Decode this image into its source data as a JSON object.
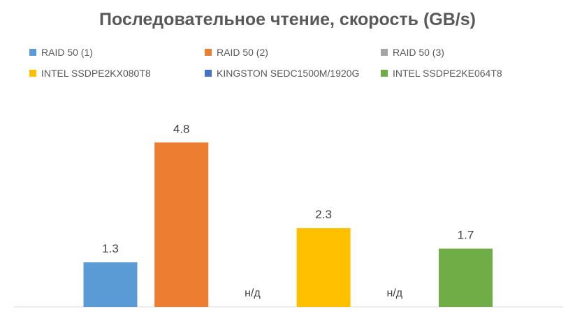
{
  "chart_data": {
    "type": "bar",
    "title": "Последовательное чтение, скорость (GB/s)",
    "xlabel": "",
    "ylabel": "",
    "ylim": [
      0,
      5.5
    ],
    "grid": false,
    "legend_position": "top",
    "series": [
      {
        "name": "RAID 50 (1)",
        "value": 1.3,
        "label": "1.3",
        "color": "#5b9bd5"
      },
      {
        "name": "RAID 50 (2)",
        "value": 4.8,
        "label": "4.8",
        "color": "#ed7d31"
      },
      {
        "name": "RAID 50 (3)",
        "value": null,
        "label": "н/д",
        "color": "#a5a5a5"
      },
      {
        "name": "INTEL SSDPE2KX080T8",
        "value": 2.3,
        "label": "2.3",
        "color": "#ffc000"
      },
      {
        "name": "KINGSTON SEDC1500M/1920G",
        "value": null,
        "label": "н/д",
        "color": "#4472c4"
      },
      {
        "name": "INTEL SSDPE2KE064T8",
        "value": 1.7,
        "label": "1.7",
        "color": "#70ad47"
      }
    ]
  }
}
